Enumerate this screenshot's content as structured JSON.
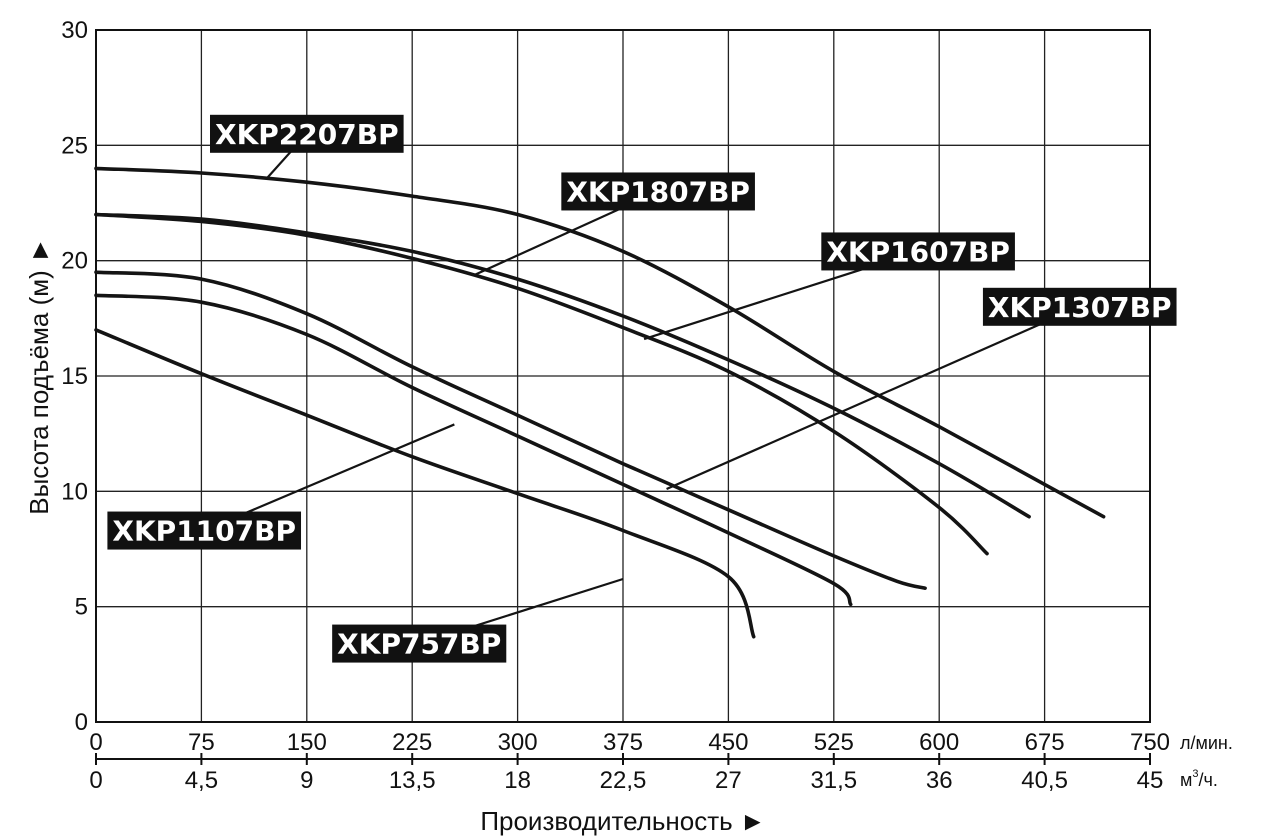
{
  "chart_data": {
    "type": "line",
    "title": "",
    "xlabel": "Производительность ►",
    "ylabel": "Высота подъёма (м) ►",
    "x_unit_primary": "л/мин.",
    "x_unit_secondary_base": "м",
    "x_unit_secondary_sup": "3",
    "x_unit_secondary_tail": "/ч.",
    "xlim": [
      0,
      750
    ],
    "ylim": [
      0,
      30
    ],
    "grid": true,
    "x_ticks_primary": [
      "0",
      "75",
      "150",
      "225",
      "300",
      "375",
      "450",
      "525",
      "600",
      "675",
      "750"
    ],
    "x_ticks_secondary": [
      "0",
      "4,5",
      "9",
      "13,5",
      "18",
      "22,5",
      "27",
      "31,5",
      "36",
      "40,5",
      "45"
    ],
    "y_ticks": [
      "0",
      "5",
      "10",
      "15",
      "20",
      "25",
      "30"
    ],
    "series": [
      {
        "name": "XKP2207BP",
        "points": [
          [
            0,
            24
          ],
          [
            75,
            23.8
          ],
          [
            150,
            23.4
          ],
          [
            225,
            22.8
          ],
          [
            300,
            22
          ],
          [
            375,
            20.4
          ],
          [
            450,
            18
          ],
          [
            525,
            15.2
          ],
          [
            600,
            12.8
          ],
          [
            675,
            10.3
          ],
          [
            717,
            8.9
          ]
        ]
      },
      {
        "name": "XKP1807BP",
        "points": [
          [
            0,
            22
          ],
          [
            75,
            21.8
          ],
          [
            150,
            21.2
          ],
          [
            225,
            20.4
          ],
          [
            300,
            19.2
          ],
          [
            375,
            17.6
          ],
          [
            450,
            15.7
          ],
          [
            525,
            13.6
          ],
          [
            600,
            11.2
          ],
          [
            664,
            8.9
          ]
        ]
      },
      {
        "name": "XKP1607BP",
        "points": [
          [
            0,
            22
          ],
          [
            75,
            21.7
          ],
          [
            150,
            21.1
          ],
          [
            225,
            20.1
          ],
          [
            300,
            18.8
          ],
          [
            375,
            17.1
          ],
          [
            450,
            15.2
          ],
          [
            525,
            12.6
          ],
          [
            600,
            9.3
          ],
          [
            634,
            7.3
          ]
        ]
      },
      {
        "name": "XKP1307BP",
        "points": [
          [
            0,
            19.5
          ],
          [
            75,
            19.2
          ],
          [
            150,
            17.7
          ],
          [
            225,
            15.4
          ],
          [
            300,
            13.3
          ],
          [
            375,
            11.2
          ],
          [
            450,
            9.2
          ],
          [
            525,
            7.2
          ],
          [
            570,
            6.1
          ],
          [
            590,
            5.8
          ]
        ]
      },
      {
        "name": "XKP1107BP",
        "points": [
          [
            0,
            18.5
          ],
          [
            75,
            18.2
          ],
          [
            150,
            16.8
          ],
          [
            225,
            14.5
          ],
          [
            300,
            12.4
          ],
          [
            375,
            10.3
          ],
          [
            450,
            8.2
          ],
          [
            525,
            6
          ],
          [
            537,
            5.1
          ]
        ]
      },
      {
        "name": "XKP757BP",
        "points": [
          [
            0,
            17
          ],
          [
            75,
            15.1
          ],
          [
            150,
            13.3
          ],
          [
            225,
            11.5
          ],
          [
            300,
            9.9
          ],
          [
            375,
            8.3
          ],
          [
            450,
            6.3
          ],
          [
            468,
            3.7
          ]
        ]
      }
    ],
    "labels": [
      {
        "text": "XKP2207BP",
        "at": [
          150,
          25.5
        ],
        "pointer_to": [
          122,
          23.6
        ]
      },
      {
        "text": "XKP1807BP",
        "at": [
          400,
          23
        ],
        "pointer_to": [
          270,
          19.4
        ]
      },
      {
        "text": "XKP1607BP",
        "at": [
          585,
          20.4
        ],
        "pointer_to": [
          390,
          16.6
        ]
      },
      {
        "text": "XKP1307BP",
        "at": [
          700,
          18
        ],
        "pointer_to": [
          406,
          10.1
        ]
      },
      {
        "text": "XKP1107BP",
        "at": [
          77,
          8.3
        ],
        "pointer_to": [
          255,
          12.9
        ]
      },
      {
        "text": "XKP757BP",
        "at": [
          230,
          3.4
        ],
        "pointer_to": [
          375,
          6.2
        ]
      }
    ]
  }
}
